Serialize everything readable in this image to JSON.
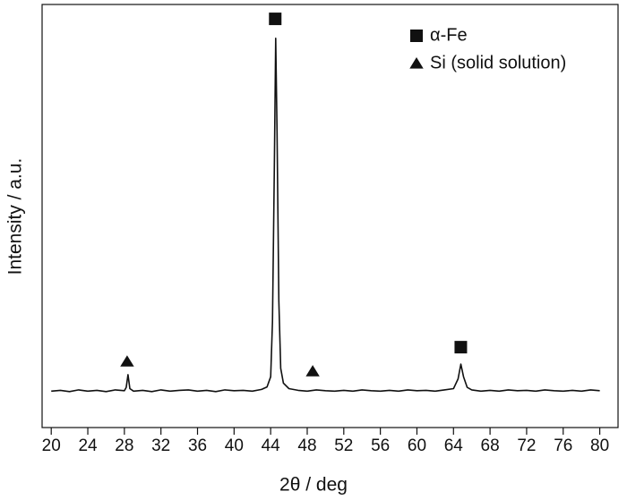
{
  "chart_data": {
    "type": "line",
    "x_label": "2θ / deg",
    "y_label": "Intensity / a.u.",
    "xlim": [
      19,
      82
    ],
    "ylim": [
      0,
      100
    ],
    "xticks": [
      20,
      24,
      28,
      32,
      36,
      40,
      44,
      48,
      52,
      56,
      60,
      64,
      68,
      72,
      76,
      80
    ],
    "color": "#111111",
    "x": [
      20,
      21,
      22,
      23,
      24,
      25,
      26,
      27,
      28,
      28.2,
      28.4,
      28.6,
      29,
      30,
      31,
      32,
      33,
      34,
      35,
      36,
      37,
      38,
      39,
      40,
      41,
      42,
      43,
      43.6,
      44.0,
      44.2,
      44.4,
      44.55,
      44.7,
      44.9,
      45.1,
      45.4,
      46,
      47,
      48,
      49,
      50,
      51,
      52,
      53,
      54,
      55,
      56,
      57,
      58,
      59,
      60,
      61,
      62,
      63,
      64,
      64.5,
      64.8,
      65.1,
      65.5,
      66,
      67,
      68,
      69,
      70,
      71,
      72,
      73,
      74,
      75,
      76,
      77,
      78,
      79,
      80
    ],
    "values": [
      8.6,
      8.8,
      8.5,
      8.9,
      8.6,
      8.8,
      8.5,
      8.9,
      8.7,
      9.5,
      12.5,
      9.2,
      8.6,
      8.8,
      8.5,
      8.9,
      8.6,
      8.8,
      8.9,
      8.6,
      8.8,
      8.5,
      8.9,
      8.7,
      8.8,
      8.6,
      9.0,
      9.6,
      12,
      25,
      60,
      92,
      70,
      30,
      14,
      10.5,
      9.2,
      8.8,
      8.6,
      8.9,
      8.7,
      8.6,
      8.8,
      8.6,
      8.9,
      8.7,
      8.6,
      8.8,
      8.6,
      8.9,
      8.7,
      8.8,
      8.6,
      8.9,
      9.2,
      11.5,
      15,
      12,
      9.5,
      8.9,
      8.6,
      8.8,
      8.6,
      8.9,
      8.7,
      8.8,
      8.6,
      8.9,
      8.7,
      8.6,
      8.8,
      8.6,
      8.9,
      8.7
    ],
    "markers": [
      {
        "x": 44.5,
        "y": 96.6,
        "symbol": "square"
      },
      {
        "x": 64.8,
        "y": 19,
        "symbol": "square"
      },
      {
        "x": 28.3,
        "y": 15.6,
        "symbol": "triangle"
      },
      {
        "x": 48.6,
        "y": 13.3,
        "symbol": "triangle"
      }
    ],
    "legend": [
      {
        "label": "α-Fe",
        "symbol": "square"
      },
      {
        "label": "Si (solid solution)",
        "symbol": "triangle"
      }
    ]
  }
}
